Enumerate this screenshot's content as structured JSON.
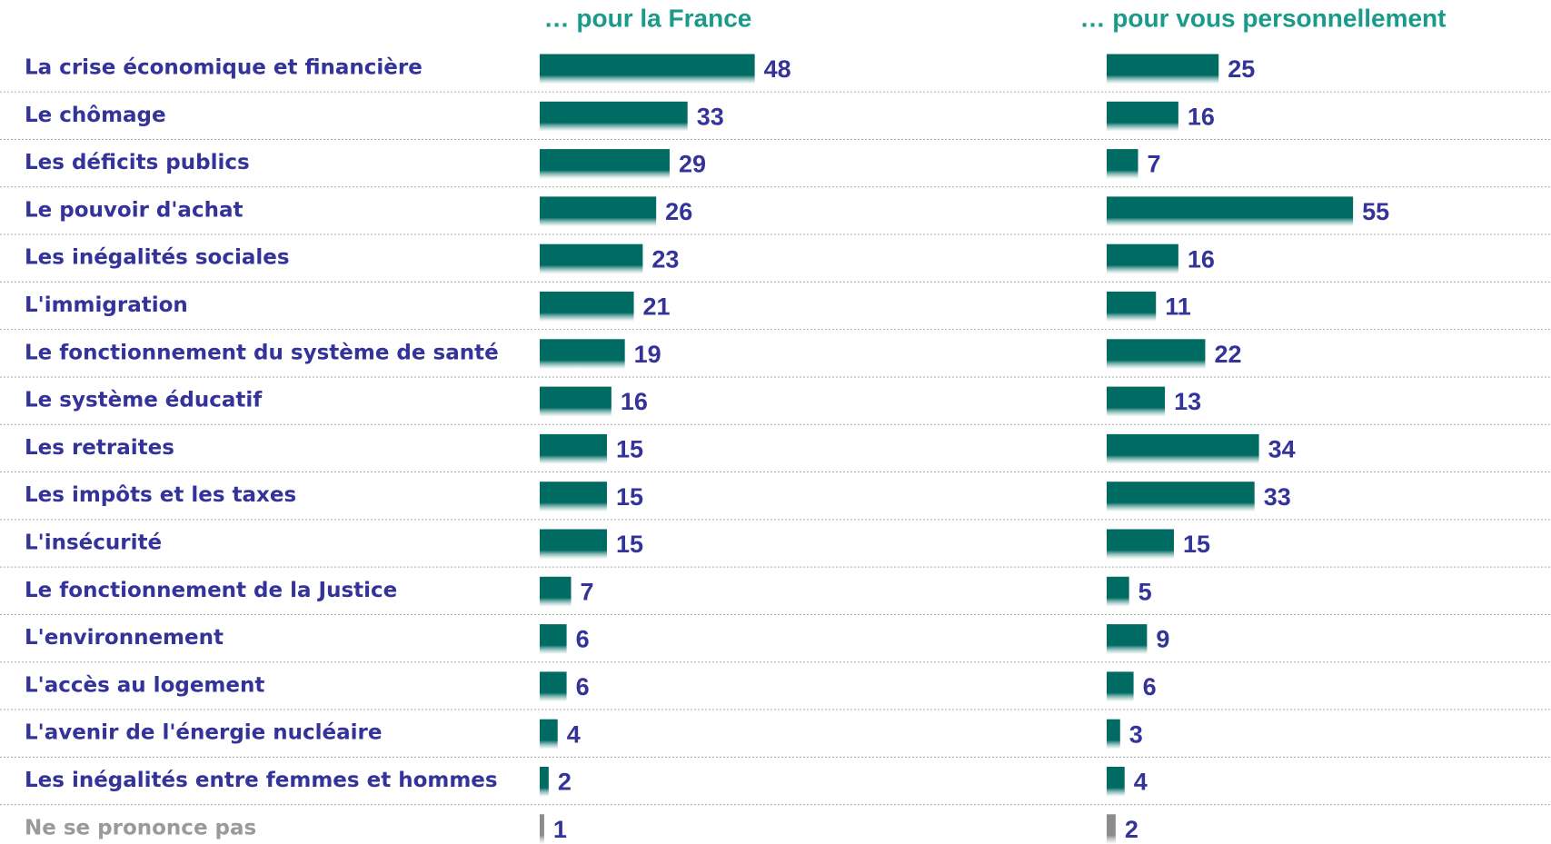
{
  "chart_data": {
    "type": "bar",
    "categories": [
      "La crise économique et financière",
      "Le chômage",
      "Les déficits publics",
      "Le pouvoir d'achat",
      "Les inégalités sociales",
      "L'immigration",
      "Le fonctionnement du système de santé",
      "Le système éducatif",
      "Les retraites",
      "Les impôts et les taxes",
      "L'insécurité",
      "Le fonctionnement de la Justice",
      "L'environnement",
      "L'accès au logement",
      "L'avenir de l'énergie nucléaire",
      "Les inégalités entre femmes et hommes",
      "Ne se prononce pas"
    ],
    "series": [
      {
        "name": "… pour la France",
        "color": "#006b63",
        "values": [
          48,
          33,
          29,
          26,
          23,
          21,
          19,
          16,
          15,
          15,
          15,
          7,
          6,
          6,
          4,
          2,
          1
        ]
      },
      {
        "name": "… pour vous personnellement",
        "color": "#006b63",
        "values": [
          25,
          16,
          7,
          55,
          16,
          11,
          22,
          13,
          34,
          33,
          15,
          5,
          9,
          6,
          3,
          4,
          2
        ]
      }
    ],
    "bar_colors": [
      "#006b63",
      "#006b63",
      "#006b63",
      "#006b63",
      "#006b63",
      "#006b63",
      "#006b63",
      "#006b63",
      "#006b63",
      "#006b63",
      "#006b63",
      "#006b63",
      "#006b63",
      "#006b63",
      "#006b63",
      "#006b63",
      "#8c8c8c"
    ],
    "label_colors": [
      "#33339a",
      "#33339a",
      "#33339a",
      "#33339a",
      "#33339a",
      "#33339a",
      "#33339a",
      "#33339a",
      "#33339a",
      "#33339a",
      "#33339a",
      "#33339a",
      "#33339a",
      "#33339a",
      "#33339a",
      "#33339a",
      "#9a9a9a"
    ]
  }
}
